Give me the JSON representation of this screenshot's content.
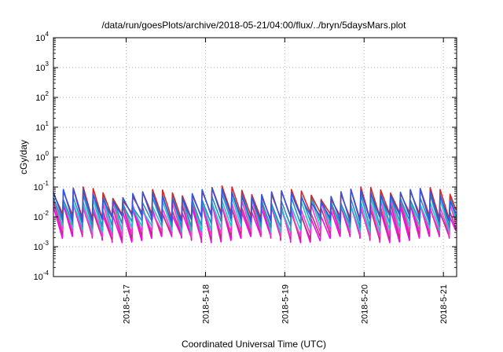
{
  "chart_data": {
    "type": "line",
    "title": "/data/run/goesPlots/archive/2018-05-21/04:00/flux/../bryn/5daysMars.plot",
    "xlabel": "Coordinated Universal Time (UTC)",
    "ylabel": "cGy/day",
    "yscale": "log",
    "ylim": [
      0.0001,
      10000
    ],
    "xlim": [
      "2018-05-16T02:00",
      "2018-05-21T04:00"
    ],
    "grid": true,
    "yticks": [
      {
        "base": "10",
        "exp": "-4"
      },
      {
        "base": "10",
        "exp": "-3"
      },
      {
        "base": "10",
        "exp": "-2"
      },
      {
        "base": "10",
        "exp": "-1"
      },
      {
        "base": "10",
        "exp": "0"
      },
      {
        "base": "10",
        "exp": "1"
      },
      {
        "base": "10",
        "exp": "2"
      },
      {
        "base": "10",
        "exp": "3"
      },
      {
        "base": "10",
        "exp": "4"
      }
    ],
    "xticks": [
      "2018-5-17",
      "2018-5-18",
      "2018-5-19",
      "2018-5-20",
      "2018-5-21"
    ],
    "pattern": {
      "period_hours": 3,
      "first_peak": "2018-05-16T02:00"
    },
    "series": [
      {
        "color": "#ff00ff",
        "peak": 0.018,
        "trough": 0.0018
      },
      {
        "color": "#b23a6e",
        "peak": 0.022,
        "trough": 0.0022
      },
      {
        "color": "#ff33dd",
        "peak": 0.028,
        "trough": 0.0028
      },
      {
        "color": "#22c4c4",
        "peak": 0.035,
        "trough": 0.004
      },
      {
        "color": "#2e8bc0",
        "peak": 0.045,
        "trough": 0.006
      },
      {
        "color": "#d62728",
        "peak": 0.07,
        "trough": 0.011
      },
      {
        "color": "#3355dd",
        "peak": 0.06,
        "trough": 0.009
      }
    ]
  }
}
